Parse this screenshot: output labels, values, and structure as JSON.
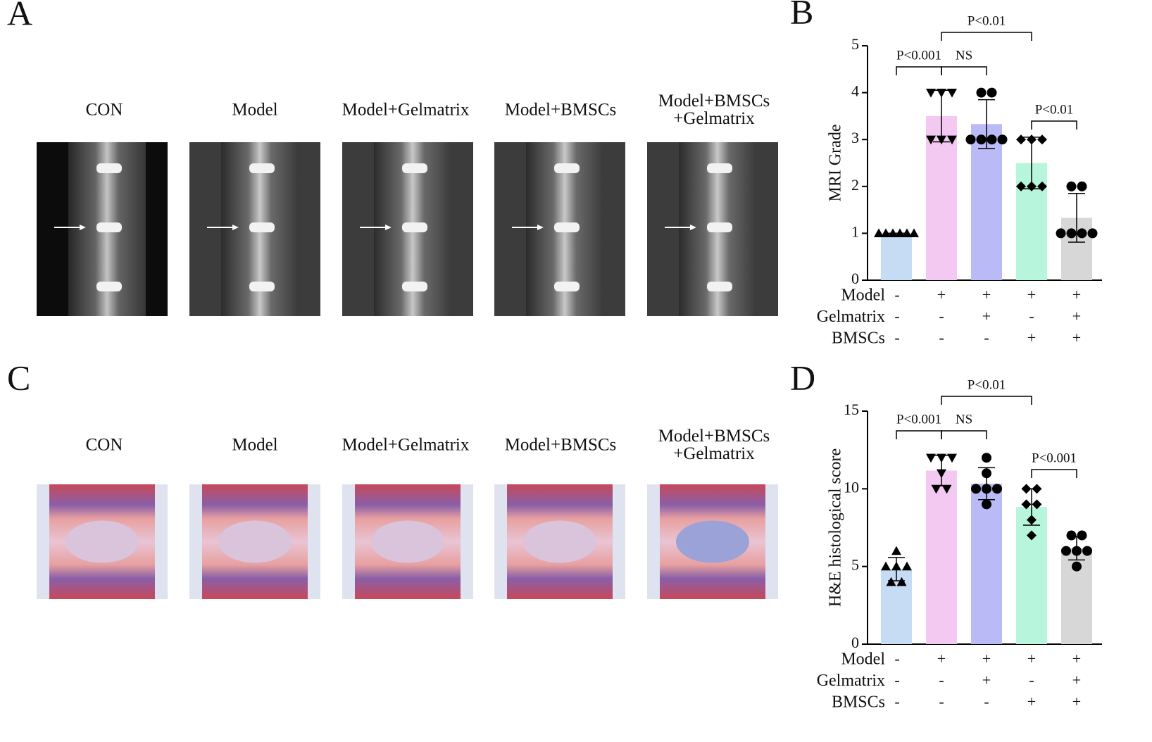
{
  "image_panels": [
    {
      "label": "A",
      "titles": [
        [
          "CON"
        ],
        [
          "Model"
        ],
        [
          "Model+Gelmatrix"
        ],
        [
          "Model+BMSCs"
        ],
        [
          "Model+BMSCs",
          "+Gelmatrix"
        ]
      ]
    },
    {
      "label": "C",
      "titles": [
        [
          "CON"
        ],
        [
          "Model"
        ],
        [
          "Model+Gelmatrix"
        ],
        [
          "Model+BMSCs"
        ],
        [
          "Model+BMSCs",
          "+Gelmatrix"
        ]
      ]
    }
  ],
  "chart_data": [
    {
      "type": "bar",
      "panel_label": "B",
      "ylabel": "MRI Grade",
      "ylim": [
        0,
        5
      ],
      "yticks": [
        0,
        1,
        2,
        3,
        4,
        5
      ],
      "values": [
        1,
        3.5,
        3.33,
        2.5,
        1.33
      ],
      "errors": [
        0,
        0.55,
        0.52,
        0.55,
        0.52
      ],
      "colors": [
        "#c6dcf4",
        "#f3c9f1",
        "#babaf7",
        "#b8f5dd",
        "#d7d7d7"
      ],
      "markers": [
        "triangle-up",
        "triangle-down",
        "circle",
        "diamond",
        "circle"
      ],
      "points": [
        [
          1,
          1,
          1,
          1,
          1,
          1
        ],
        [
          4,
          4,
          4,
          3,
          3,
          3
        ],
        [
          4,
          4,
          3,
          3,
          3,
          3
        ],
        [
          3,
          3,
          3,
          2,
          2,
          2
        ],
        [
          2,
          2,
          1,
          1,
          1,
          1
        ]
      ],
      "conditions": [
        {
          "name": "Model",
          "signs": [
            "-",
            "+",
            "+",
            "+",
            "+"
          ]
        },
        {
          "name": "Gelmatrix",
          "signs": [
            "-",
            "-",
            "+",
            "-",
            "+"
          ]
        },
        {
          "name": "BMSCs",
          "signs": [
            "-",
            "-",
            "-",
            "+",
            "+"
          ]
        }
      ],
      "comparisons": [
        {
          "label": "P<0.001",
          "groups": [
            0,
            1
          ]
        },
        {
          "label": "NS",
          "groups": [
            1,
            2
          ]
        },
        {
          "label": "P<0.01",
          "groups": [
            1,
            3
          ]
        },
        {
          "label": "P<0.01",
          "groups": [
            3,
            4
          ]
        }
      ]
    },
    {
      "type": "bar",
      "panel_label": "D",
      "ylabel": "H&E histological score",
      "ylim": [
        0,
        15
      ],
      "yticks": [
        0,
        5,
        10,
        15
      ],
      "values": [
        4.83,
        11.17,
        10.33,
        8.83,
        6.17
      ],
      "errors": [
        0.75,
        0.98,
        1.03,
        1.17,
        0.75
      ],
      "colors": [
        "#c6dcf4",
        "#f3c9f1",
        "#babaf7",
        "#b8f5dd",
        "#d7d7d7"
      ],
      "markers": [
        "triangle-up",
        "triangle-down",
        "circle",
        "diamond",
        "circle"
      ],
      "points": [
        [
          6,
          5,
          5,
          5,
          4,
          4
        ],
        [
          12,
          12,
          12,
          11,
          10,
          10
        ],
        [
          12,
          11,
          10,
          10,
          10,
          9
        ],
        [
          10,
          10,
          9,
          9,
          8,
          7
        ],
        [
          7,
          7,
          6,
          6,
          6,
          5
        ]
      ],
      "conditions": [
        {
          "name": "Model",
          "signs": [
            "-",
            "+",
            "+",
            "+",
            "+"
          ]
        },
        {
          "name": "Gelmatrix",
          "signs": [
            "-",
            "-",
            "+",
            "-",
            "+"
          ]
        },
        {
          "name": "BMSCs",
          "signs": [
            "-",
            "-",
            "-",
            "+",
            "+"
          ]
        }
      ],
      "comparisons": [
        {
          "label": "P<0.001",
          "groups": [
            0,
            1
          ]
        },
        {
          "label": "NS",
          "groups": [
            1,
            2
          ]
        },
        {
          "label": "P<0.01",
          "groups": [
            1,
            3
          ]
        },
        {
          "label": "P<0.001",
          "groups": [
            3,
            4
          ]
        }
      ]
    }
  ]
}
